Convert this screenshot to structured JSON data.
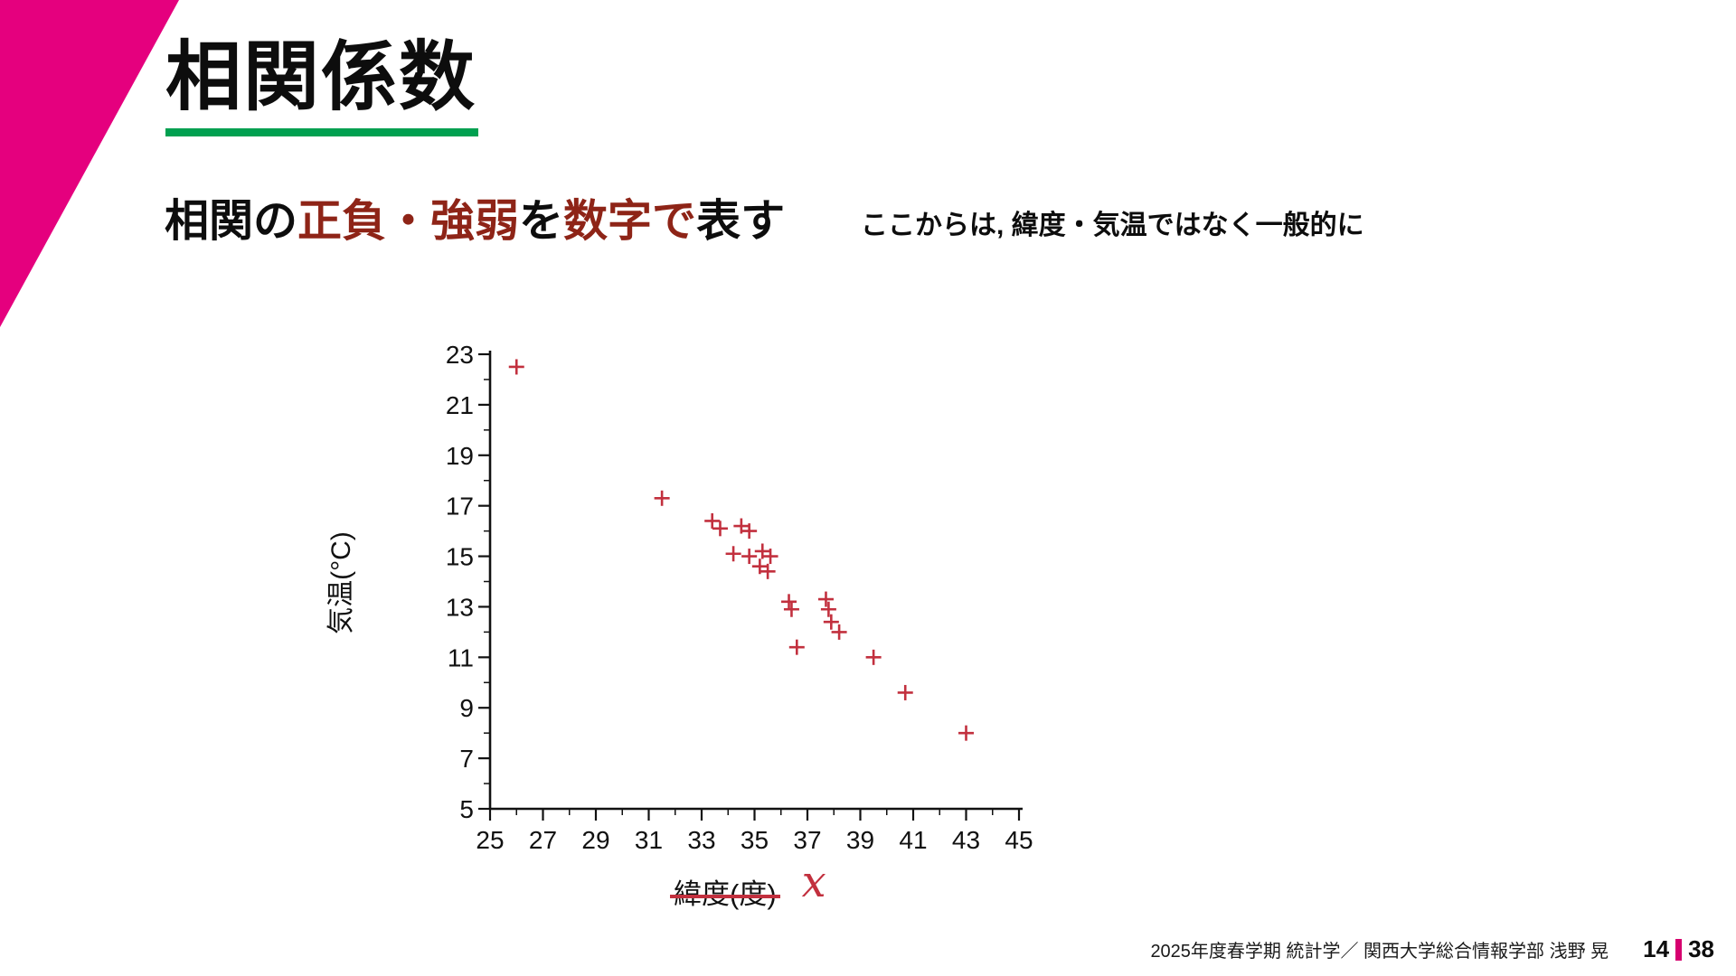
{
  "slide": {
    "title": "相関係数",
    "heading": {
      "seg1": "相関の",
      "seg2": "正負・強弱",
      "seg3": "を",
      "seg4": "数字で",
      "seg5": "表す"
    },
    "annotation": "ここからは, 緯度・気温ではなく一般的に",
    "x_symbol": "x"
  },
  "footer": {
    "course": "2025年度春学期  統計学／ 関西大学総合情報学部 浅野 晃",
    "page_current": "14",
    "page_total": "38"
  },
  "colors": {
    "accent_magenta": "#e5007e",
    "accent_green": "#00a050",
    "dark_red_text": "#8e2417",
    "marker_red": "#c2303e"
  },
  "chart_data": {
    "type": "scatter",
    "title": "",
    "xlabel": "緯度(度)",
    "ylabel": "気温(°C)",
    "xlim": [
      25,
      45
    ],
    "ylim": [
      5,
      23
    ],
    "xtick_step": 2,
    "ytick_step": 2,
    "minor_tick_step": 1,
    "grid": false,
    "legend": false,
    "marker": "plus",
    "marker_color": "#c2303e",
    "points": [
      [
        26.0,
        22.5
      ],
      [
        31.5,
        17.3
      ],
      [
        33.4,
        16.4
      ],
      [
        33.7,
        16.1
      ],
      [
        34.5,
        16.2
      ],
      [
        34.8,
        16.0
      ],
      [
        34.2,
        15.1
      ],
      [
        34.8,
        15.0
      ],
      [
        35.3,
        15.2
      ],
      [
        35.6,
        15.0
      ],
      [
        35.2,
        14.6
      ],
      [
        35.5,
        14.4
      ],
      [
        36.3,
        13.2
      ],
      [
        36.4,
        12.9
      ],
      [
        37.7,
        13.3
      ],
      [
        37.8,
        12.9
      ],
      [
        37.9,
        12.4
      ],
      [
        38.2,
        12.0
      ],
      [
        36.6,
        11.4
      ],
      [
        39.5,
        11.0
      ],
      [
        40.7,
        9.6
      ],
      [
        43.0,
        8.0
      ]
    ]
  }
}
